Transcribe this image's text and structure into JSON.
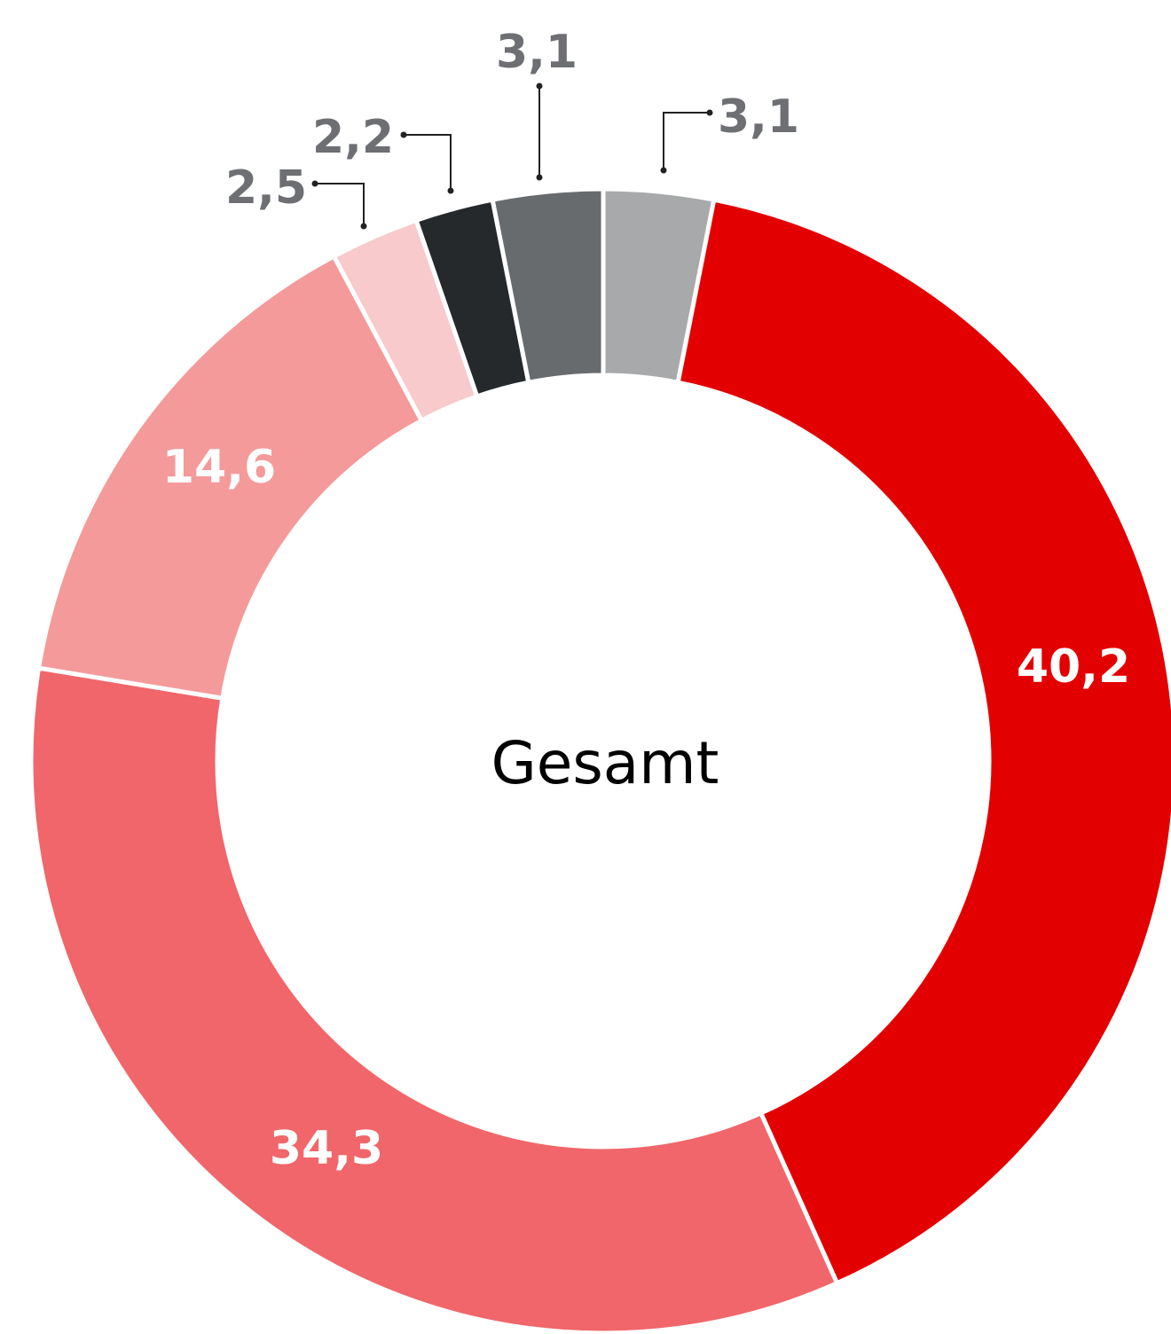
{
  "chart_data": {
    "type": "donut",
    "center_label": "Gesamt",
    "values": [
      3.1,
      40.2,
      34.3,
      14.6,
      2.5,
      2.2,
      3.1
    ],
    "value_labels": [
      "3,1",
      "40,2",
      "34,3",
      "14,6",
      "2,5",
      "2,2",
      "3,1"
    ],
    "colors": [
      "#a8a9aa",
      "#e30000",
      "#f0666a",
      "#f49a9a",
      "#f9cacb",
      "#26292c",
      "#686b6e"
    ]
  }
}
